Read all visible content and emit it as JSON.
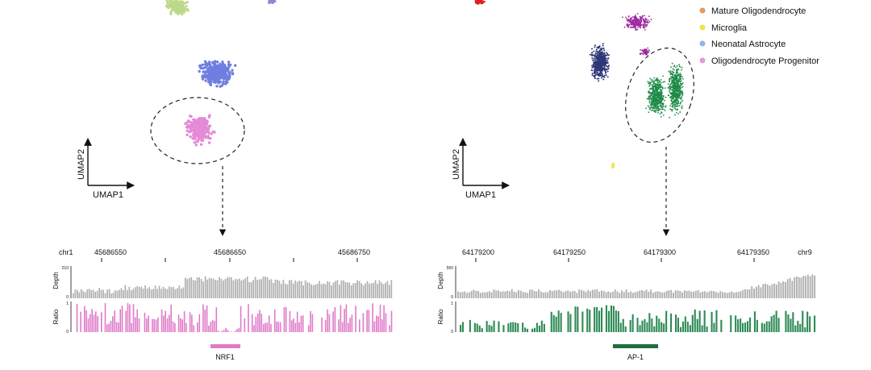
{
  "colors": {
    "green_cluster": "#bcd98a",
    "violet_cluster": "#9b7fd0",
    "blue_cluster": "#6f7fe0",
    "pink_cluster": "#e48ad6",
    "red_cluster": "#e02020",
    "navy_cluster": "#2e3878",
    "magenta_cluster": "#9c2aa0",
    "dark_green_cluster": "#1e8a48",
    "yellow_cluster": "#f2e24a",
    "depth_bar": "#b0b0b0",
    "ratio_left": "#e07ac8",
    "ratio_right": "#2f8a55",
    "motif_left": "#e07ac8",
    "motif_right": "#1f6e3d"
  },
  "legend": [
    {
      "label": "Mature Oligodendrocyte",
      "color": "#e39a5c"
    },
    {
      "label": "Microglia",
      "color": "#f2e24a"
    },
    {
      "label": "Neonatal Astrocyte",
      "color": "#8fb5ee"
    },
    {
      "label": "Oligodendrocyte Progenitor",
      "color": "#e39ad6"
    }
  ],
  "left": {
    "umap_x": "UMAP1",
    "umap_y": "UMAP2",
    "chrom": "chr1",
    "positions": [
      "45686550",
      "45686650",
      "45686750"
    ],
    "depth_label": "Depth",
    "depth_max": "210",
    "depth_min": "0",
    "ratio_label": "Ratio",
    "ratio_max": "1",
    "ratio_min": "0",
    "motif": "NRF1"
  },
  "right": {
    "umap_x": "UMAP1",
    "umap_y": "UMAP2",
    "chrom": "chr9",
    "positions": [
      "64179200",
      "64179250",
      "64179300",
      "64179350"
    ],
    "depth_label": "Depth",
    "depth_max": "550",
    "depth_min": "0",
    "ratio_label": "Ratio",
    "ratio_max": "1",
    "ratio_min": "0",
    "motif": "AP-1"
  }
}
